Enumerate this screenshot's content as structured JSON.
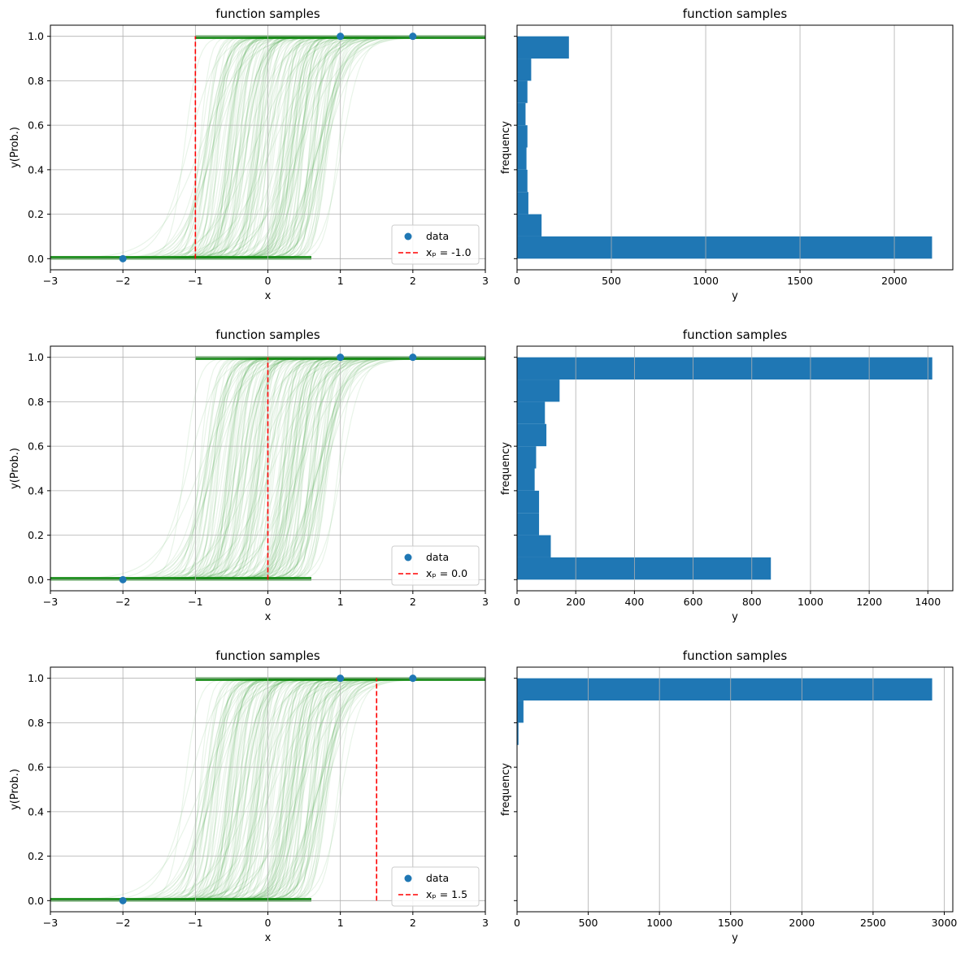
{
  "chart_data": [
    {
      "type": "line",
      "title": "function samples",
      "xlabel": "x",
      "ylabel": "y(Prob.)",
      "xlim": [
        -3,
        3
      ],
      "ylim": [
        -0.05,
        1.05
      ],
      "xticks": [
        -3,
        -2,
        -1,
        0,
        1,
        2,
        3
      ],
      "yticks": [
        0.0,
        0.2,
        0.4,
        0.6,
        0.8,
        1.0
      ],
      "grid": true,
      "legend": "lower right",
      "colors": {
        "samples": "#008000",
        "data": "#1f77b4",
        "vline": "#ff0000"
      },
      "data_points": {
        "name": "data",
        "x": [
          -2,
          1,
          2
        ],
        "y": [
          0,
          1,
          1
        ]
      },
      "vline": {
        "name": "xₚ = -1.0",
        "x": -1.0,
        "y": [
          0,
          1
        ]
      }
    },
    {
      "type": "bar",
      "orientation": "horizontal",
      "title": "function samples",
      "xlabel": "y",
      "ylabel": "frequency",
      "xlim": [
        0,
        2310
      ],
      "ylim": [
        -0.05,
        1.05
      ],
      "xticks": [
        0,
        500,
        1000,
        1500,
        2000
      ],
      "grid": "x",
      "color": "#1f77b4",
      "bin_edges": [
        0.0,
        0.1,
        0.2,
        0.3,
        0.4,
        0.5,
        0.6,
        0.7,
        0.8,
        0.9,
        1.0
      ],
      "counts": [
        2200,
        130,
        60,
        55,
        50,
        55,
        45,
        55,
        75,
        275
      ]
    },
    {
      "type": "line",
      "title": "function samples",
      "xlabel": "x",
      "ylabel": "y(Prob.)",
      "xlim": [
        -3,
        3
      ],
      "ylim": [
        -0.05,
        1.05
      ],
      "xticks": [
        -3,
        -2,
        -1,
        0,
        1,
        2,
        3
      ],
      "yticks": [
        0.0,
        0.2,
        0.4,
        0.6,
        0.8,
        1.0
      ],
      "grid": true,
      "legend": "lower right",
      "colors": {
        "samples": "#008000",
        "data": "#1f77b4",
        "vline": "#ff0000"
      },
      "data_points": {
        "name": "data",
        "x": [
          -2,
          1,
          2
        ],
        "y": [
          0,
          1,
          1
        ]
      },
      "vline": {
        "name": "xₚ = 0.0",
        "x": 0.0,
        "y": [
          0,
          1
        ]
      }
    },
    {
      "type": "bar",
      "orientation": "horizontal",
      "title": "function samples",
      "xlabel": "y",
      "ylabel": "frequency",
      "xlim": [
        0,
        1485
      ],
      "ylim": [
        -0.05,
        1.05
      ],
      "xticks": [
        0,
        200,
        400,
        600,
        800,
        1000,
        1200,
        1400
      ],
      "grid": "x",
      "color": "#1f77b4",
      "bin_edges": [
        0.0,
        0.1,
        0.2,
        0.3,
        0.4,
        0.5,
        0.6,
        0.7,
        0.8,
        0.9,
        1.0
      ],
      "counts": [
        865,
        115,
        75,
        75,
        60,
        65,
        100,
        95,
        145,
        1415
      ]
    },
    {
      "type": "line",
      "title": "function samples",
      "xlabel": "x",
      "ylabel": "y(Prob.)",
      "xlim": [
        -3,
        3
      ],
      "ylim": [
        -0.05,
        1.05
      ],
      "xticks": [
        -3,
        -2,
        -1,
        0,
        1,
        2,
        3
      ],
      "yticks": [
        0.0,
        0.2,
        0.4,
        0.6,
        0.8,
        1.0
      ],
      "grid": true,
      "legend": "lower right",
      "colors": {
        "samples": "#008000",
        "data": "#1f77b4",
        "vline": "#ff0000"
      },
      "data_points": {
        "name": "data",
        "x": [
          -2,
          1,
          2
        ],
        "y": [
          0,
          1,
          1
        ]
      },
      "vline": {
        "name": "xₚ = 1.5",
        "x": 1.5,
        "y": [
          0,
          1
        ]
      }
    },
    {
      "type": "bar",
      "orientation": "horizontal",
      "title": "function samples",
      "xlabel": "y",
      "ylabel": "frequency",
      "xlim": [
        0,
        3060
      ],
      "ylim": [
        -0.05,
        1.05
      ],
      "xticks": [
        0,
        500,
        1000,
        1500,
        2000,
        2500,
        3000
      ],
      "grid": "x",
      "color": "#1f77b4",
      "bin_edges": [
        0.0,
        0.1,
        0.2,
        0.3,
        0.4,
        0.5,
        0.6,
        0.7,
        0.8,
        0.9,
        1.0
      ],
      "counts": [
        0,
        0,
        0,
        0,
        0,
        0,
        2,
        10,
        45,
        2915
      ]
    }
  ]
}
